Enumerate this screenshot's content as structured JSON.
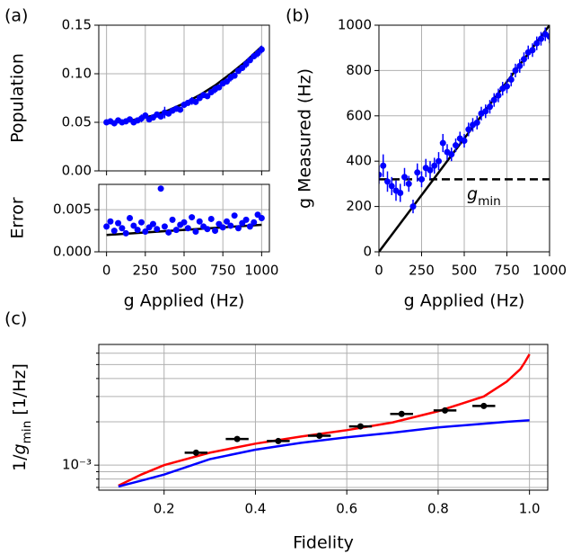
{
  "chart_data": [
    {
      "type": "scatter",
      "panel_label": "(a)",
      "ylabel": "Population",
      "xlim": [
        -50,
        1050
      ],
      "ylim": [
        0,
        0.15
      ],
      "xticks": [
        0,
        250,
        500,
        750,
        1000
      ],
      "show_xticklabels": false,
      "yticks": [
        {
          "value": 0,
          "label": "0.00"
        },
        {
          "value": 0.05,
          "label": "0.05"
        },
        {
          "value": 0.1,
          "label": "0.10"
        },
        {
          "value": 0.15,
          "label": "0.15"
        }
      ],
      "grid": true,
      "color": "#0000ff",
      "x": [
        0,
        25,
        50,
        75,
        100,
        125,
        150,
        175,
        200,
        225,
        250,
        275,
        300,
        325,
        350,
        375,
        400,
        425,
        450,
        475,
        500,
        525,
        550,
        575,
        600,
        625,
        650,
        675,
        700,
        725,
        750,
        775,
        800,
        825,
        850,
        875,
        900,
        925,
        950,
        975,
        1000
      ],
      "values": [
        0.05,
        0.051,
        0.049,
        0.052,
        0.05,
        0.051,
        0.053,
        0.05,
        0.052,
        0.054,
        0.057,
        0.053,
        0.055,
        0.058,
        0.056,
        0.06,
        0.059,
        0.062,
        0.064,
        0.063,
        0.068,
        0.07,
        0.072,
        0.071,
        0.075,
        0.078,
        0.077,
        0.081,
        0.084,
        0.086,
        0.09,
        0.092,
        0.096,
        0.098,
        0.103,
        0.106,
        0.11,
        0.114,
        0.118,
        0.121,
        0.125
      ],
      "errors": [
        0.002,
        0.003,
        0.002,
        0.003,
        0.002,
        0.003,
        0.003,
        0.002,
        0.003,
        0.004,
        0.003,
        0.002,
        0.003,
        0.003,
        0.003,
        0.006,
        0.003,
        0.002,
        0.003,
        0.003,
        0.003,
        0.003,
        0.004,
        0.003,
        0.003,
        0.003,
        0.003,
        0.003,
        0.004,
        0.003,
        0.003,
        0.003,
        0.004,
        0.003,
        0.003,
        0.003,
        0.004,
        0.003,
        0.003,
        0.004,
        0.004
      ],
      "fit_color": "#000000",
      "fit_x": [
        0,
        100,
        200,
        300,
        400,
        500,
        600,
        700,
        800,
        900,
        1000
      ],
      "fit_values": [
        0.05,
        0.0508,
        0.0531,
        0.057,
        0.0625,
        0.0695,
        0.078,
        0.088,
        0.1,
        0.113,
        0.128
      ]
    },
    {
      "type": "scatter",
      "ylabel": "Error",
      "xlabel": "g Applied (Hz)",
      "xlim": [
        -50,
        1050
      ],
      "ylim": [
        0,
        0.008
      ],
      "xticks": [
        0,
        250,
        500,
        750,
        1000
      ],
      "yticks": [
        {
          "value": 0,
          "label": "0.000"
        },
        {
          "value": 0.005,
          "label": "0.005"
        }
      ],
      "grid": true,
      "color": "#0000ff",
      "x": [
        0,
        25,
        50,
        75,
        100,
        125,
        150,
        175,
        200,
        225,
        250,
        275,
        300,
        325,
        350,
        375,
        400,
        425,
        450,
        475,
        500,
        525,
        550,
        575,
        600,
        625,
        650,
        675,
        700,
        725,
        750,
        775,
        800,
        825,
        850,
        875,
        900,
        925,
        950,
        975,
        1000
      ],
      "values": [
        0.003,
        0.0036,
        0.0025,
        0.0034,
        0.0028,
        0.0022,
        0.004,
        0.0031,
        0.0026,
        0.0035,
        0.0024,
        0.0029,
        0.0033,
        0.0027,
        0.0075,
        0.003,
        0.0023,
        0.0038,
        0.0026,
        0.0032,
        0.0035,
        0.0028,
        0.0041,
        0.0024,
        0.0036,
        0.003,
        0.0027,
        0.0039,
        0.0025,
        0.0033,
        0.0029,
        0.0036,
        0.0031,
        0.0043,
        0.0028,
        0.0034,
        0.0038,
        0.003,
        0.0035,
        0.0044,
        0.004
      ],
      "fit_color": "#000000",
      "fit_x": [
        0,
        1000
      ],
      "fit_values": [
        0.002,
        0.0032
      ]
    },
    {
      "type": "scatter",
      "panel_label": "(b)",
      "ylabel": "g Measured (Hz)",
      "xlabel": "g Applied (Hz)",
      "xlim": [
        0,
        1000
      ],
      "ylim": [
        0,
        1000
      ],
      "xticks": [
        0,
        250,
        500,
        750,
        1000
      ],
      "yticks": [
        0,
        200,
        400,
        600,
        800,
        1000
      ],
      "grid": true,
      "color": "#0000ff",
      "x": [
        0,
        25,
        50,
        75,
        100,
        125,
        150,
        175,
        200,
        225,
        250,
        275,
        300,
        325,
        350,
        375,
        400,
        425,
        450,
        475,
        500,
        525,
        550,
        575,
        600,
        625,
        650,
        675,
        700,
        725,
        750,
        775,
        800,
        825,
        850,
        875,
        900,
        925,
        950,
        975,
        1000
      ],
      "values": [
        340,
        380,
        310,
        290,
        270,
        260,
        330,
        300,
        200,
        350,
        320,
        370,
        360,
        380,
        400,
        480,
        440,
        430,
        470,
        500,
        490,
        540,
        560,
        570,
        610,
        620,
        640,
        670,
        690,
        720,
        730,
        760,
        800,
        820,
        850,
        880,
        890,
        920,
        940,
        960,
        950
      ],
      "errors": [
        40,
        50,
        45,
        40,
        45,
        40,
        40,
        35,
        30,
        40,
        35,
        40,
        40,
        35,
        40,
        40,
        35,
        30,
        30,
        30,
        30,
        30,
        30,
        30,
        30,
        30,
        30,
        30,
        30,
        30,
        30,
        30,
        30,
        30,
        30,
        30,
        30,
        30,
        30,
        30,
        30
      ],
      "fit_color": "#000000",
      "fit_x": [
        0,
        1000
      ],
      "fit_values": [
        0,
        1000
      ],
      "hline": 320,
      "hline_style": "dashed",
      "annotation": {
        "var": "g",
        "sub": "min"
      }
    },
    {
      "type": "scatter",
      "panel_label": "(c)",
      "ylabel": {
        "pre": "1/",
        "var": "g",
        "sub": "min",
        "post": " [1/Hz]"
      },
      "xlabel": "Fidelity",
      "xlim": [
        0.057,
        1.04
      ],
      "ylim": [
        0.00067,
        0.0069
      ],
      "ylog": true,
      "xticks": [
        0.2,
        0.4,
        0.6,
        0.8,
        {
          "value": 1,
          "label": "1.0"
        }
      ],
      "yticks": [
        {
          "value": 0.001,
          "label": "10⁻³"
        }
      ],
      "yminorticks": [
        0.0007,
        0.0008,
        0.0009,
        0.002,
        0.003,
        0.004,
        0.005,
        0.006
      ],
      "grid": true,
      "color": "#000000",
      "x": [
        0.27,
        0.36,
        0.45,
        0.54,
        0.63,
        0.72,
        0.815,
        0.9
      ],
      "values": [
        0.00122,
        0.00152,
        0.00147,
        0.0016,
        0.00186,
        0.00227,
        0.0024,
        0.00258
      ],
      "xerrors": [
        0.025,
        0.025,
        0.025,
        0.025,
        0.025,
        0.025,
        0.025,
        0.025
      ],
      "curves": [
        {
          "color": "#ff0000",
          "x": [
            0.1,
            0.15,
            0.2,
            0.3,
            0.4,
            0.5,
            0.6,
            0.7,
            0.8,
            0.9,
            0.95,
            0.98,
            0.99,
            1.0
          ],
          "values": [
            0.00072,
            0.00086,
            0.001,
            0.00122,
            0.00141,
            0.00158,
            0.00175,
            0.00198,
            0.00237,
            0.003,
            0.0038,
            0.00465,
            0.0052,
            0.0059
          ]
        },
        {
          "color": "#0000ff",
          "x": [
            0.1,
            0.15,
            0.2,
            0.3,
            0.4,
            0.5,
            0.6,
            0.7,
            0.8,
            0.9,
            0.95,
            0.98,
            0.99,
            1.0
          ],
          "values": [
            0.00071,
            0.00078,
            0.00086,
            0.0011,
            0.00128,
            0.00143,
            0.00156,
            0.00168,
            0.00183,
            0.00194,
            0.002,
            0.00203,
            0.00204,
            0.00205
          ]
        }
      ]
    }
  ]
}
